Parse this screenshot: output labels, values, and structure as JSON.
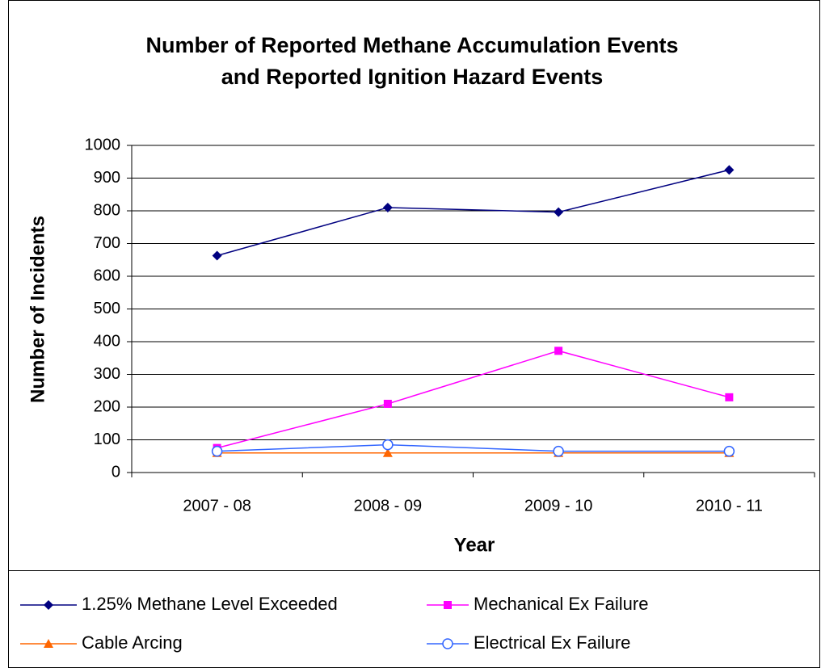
{
  "chart_data": {
    "type": "line",
    "title": [
      "Number of Reported Methane Accumulation Events",
      "and Reported Ignition Hazard Events"
    ],
    "x_label": "Year",
    "y_label": "Number of Incidents",
    "categories": [
      "2007 - 08",
      "2008 - 09",
      "2009 - 10",
      "2010 - 11"
    ],
    "series": [
      {
        "name": "1.25% Methane Level Exceeded",
        "color": "#000080",
        "marker": "diamond",
        "values": [
          663,
          810,
          796,
          925
        ]
      },
      {
        "name": "Mechanical Ex Failure",
        "color": "#ff00ff",
        "marker": "square",
        "values": [
          75,
          210,
          372,
          230
        ]
      },
      {
        "name": "Cable Arcing",
        "color": "#ff6600",
        "marker": "triangle",
        "values": [
          60,
          60,
          60,
          60
        ]
      },
      {
        "name": "Electrical Ex Failure",
        "color": "#3366ff",
        "marker": "circle",
        "values": [
          65,
          85,
          65,
          65
        ]
      }
    ],
    "ylim": [
      0,
      1000
    ],
    "yticks": [
      0,
      100,
      200,
      300,
      400,
      500,
      600,
      700,
      800,
      900,
      1000
    ],
    "grid": true,
    "legend": "bottom"
  }
}
